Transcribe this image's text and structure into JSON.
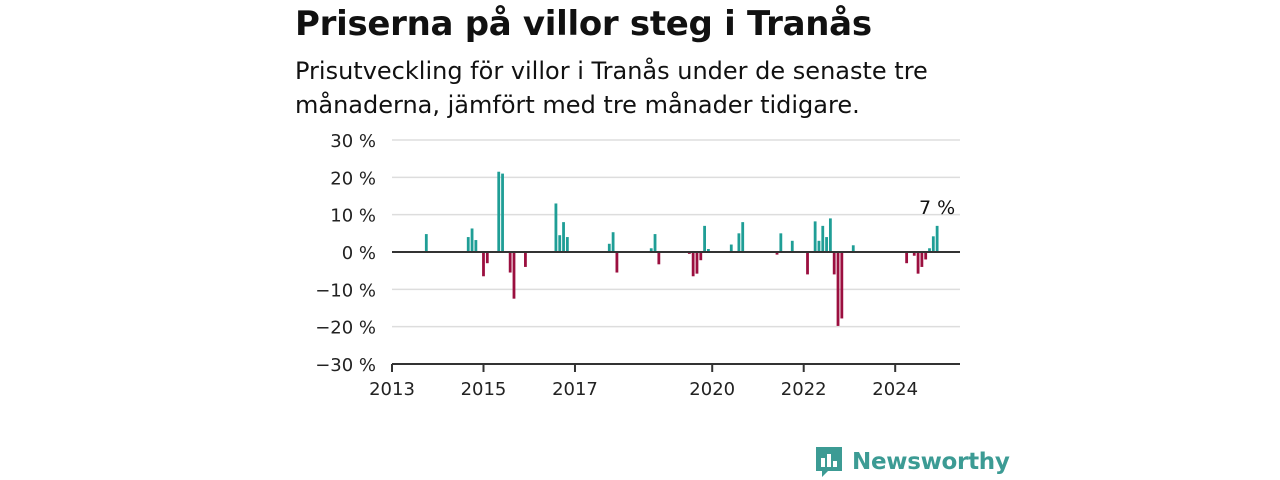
{
  "header": {
    "title": "Priserna på villor steg i Tranås",
    "subtitle": "Prisutveckling för villor i Tranås under de senaste tre månaderna, jämfört med tre månader tidigare."
  },
  "brand": {
    "name": "Newsworthy",
    "icon": "newsworthy-logo-icon"
  },
  "colors": {
    "positive": "#1f9e96",
    "negative": "#9b0f3f",
    "grid": "#dddddd",
    "axis": "#333333"
  },
  "chart_data": {
    "type": "bar",
    "title": "",
    "xlabel": "",
    "ylabel": "",
    "ylim": [
      -30,
      30
    ],
    "y_ticks": [
      30,
      20,
      10,
      0,
      -10,
      -20,
      -30
    ],
    "y_tick_labels": [
      "30 %",
      "20 %",
      "10 %",
      "0 %",
      "−10 %",
      "−20 %",
      "−30 %"
    ],
    "x_range": [
      "2013-01",
      "2025-06"
    ],
    "x_ticks": [
      "2013-01",
      "2015-01",
      "2017-01",
      "2020-01",
      "2022-01",
      "2024-01"
    ],
    "x_tick_labels": [
      "2013",
      "2015",
      "2017",
      "2020",
      "2022",
      "2024"
    ],
    "grid": true,
    "annotation": {
      "x": "2024-12",
      "text": "7 %"
    },
    "points": [
      {
        "x": "2013-10",
        "y": 4.8
      },
      {
        "x": "2014-09",
        "y": 4.0
      },
      {
        "x": "2014-10",
        "y": 6.3
      },
      {
        "x": "2014-11",
        "y": 3.2
      },
      {
        "x": "2015-01",
        "y": -6.5
      },
      {
        "x": "2015-02",
        "y": -3.0
      },
      {
        "x": "2015-05",
        "y": 21.5
      },
      {
        "x": "2015-06",
        "y": 21.0
      },
      {
        "x": "2015-08",
        "y": -5.5
      },
      {
        "x": "2015-09",
        "y": -12.5
      },
      {
        "x": "2015-12",
        "y": -4.0
      },
      {
        "x": "2016-08",
        "y": 13.0
      },
      {
        "x": "2016-09",
        "y": 4.5
      },
      {
        "x": "2016-10",
        "y": 8.0
      },
      {
        "x": "2016-11",
        "y": 4.0
      },
      {
        "x": "2017-10",
        "y": 2.2
      },
      {
        "x": "2017-11",
        "y": 5.3
      },
      {
        "x": "2017-12",
        "y": -5.5
      },
      {
        "x": "2018-09",
        "y": 1.0
      },
      {
        "x": "2018-10",
        "y": 4.8
      },
      {
        "x": "2018-11",
        "y": -3.3
      },
      {
        "x": "2019-07",
        "y": -0.5
      },
      {
        "x": "2019-08",
        "y": -6.5
      },
      {
        "x": "2019-09",
        "y": -5.8
      },
      {
        "x": "2019-10",
        "y": -2.2
      },
      {
        "x": "2019-11",
        "y": 7.0
      },
      {
        "x": "2019-12",
        "y": 0.8
      },
      {
        "x": "2020-06",
        "y": 2.0
      },
      {
        "x": "2020-08",
        "y": 5.0
      },
      {
        "x": "2020-09",
        "y": 8.0
      },
      {
        "x": "2021-06",
        "y": -0.7
      },
      {
        "x": "2021-07",
        "y": 5.0
      },
      {
        "x": "2021-10",
        "y": 3.0
      },
      {
        "x": "2022-02",
        "y": -6.0
      },
      {
        "x": "2022-04",
        "y": 8.2
      },
      {
        "x": "2022-05",
        "y": 3.0
      },
      {
        "x": "2022-06",
        "y": 7.0
      },
      {
        "x": "2022-07",
        "y": 4.0
      },
      {
        "x": "2022-08",
        "y": 9.0
      },
      {
        "x": "2022-09",
        "y": -6.0
      },
      {
        "x": "2022-10",
        "y": -19.8
      },
      {
        "x": "2022-11",
        "y": -17.8
      },
      {
        "x": "2023-02",
        "y": 1.8
      },
      {
        "x": "2024-04",
        "y": -3.0
      },
      {
        "x": "2024-06",
        "y": -1.0
      },
      {
        "x": "2024-07",
        "y": -5.8
      },
      {
        "x": "2024-08",
        "y": -4.0
      },
      {
        "x": "2024-09",
        "y": -2.0
      },
      {
        "x": "2024-10",
        "y": 1.0
      },
      {
        "x": "2024-11",
        "y": 4.2
      },
      {
        "x": "2024-12",
        "y": 7.0
      }
    ]
  }
}
